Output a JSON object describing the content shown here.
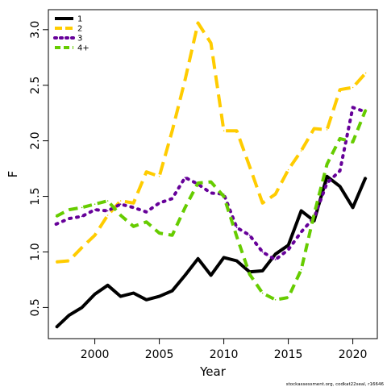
{
  "chart_data": {
    "type": "line",
    "xlabel": "Year",
    "ylabel": "F",
    "xlim": [
      1996.4,
      2021.9
    ],
    "ylim": [
      0.22,
      3.18
    ],
    "x_ticks": [
      2000,
      2005,
      2010,
      2015,
      2020
    ],
    "x_tick_labels": [
      "2000",
      "2005",
      "2010",
      "2015",
      "2020"
    ],
    "y_ticks": [
      0.5,
      1.0,
      1.5,
      2.0,
      2.5,
      3.0
    ],
    "y_tick_labels": [
      "0.5",
      "1.0",
      "1.5",
      "2.0",
      "2.5",
      "3.0"
    ],
    "legend_position": "top-left",
    "grid": false,
    "x": [
      1997,
      1998,
      1999,
      2000,
      2001,
      2002,
      2003,
      2004,
      2005,
      2006,
      2007,
      2008,
      2009,
      2010,
      2011,
      2012,
      2013,
      2014,
      2015,
      2016,
      2017,
      2018,
      2019,
      2020,
      2021
    ],
    "series": [
      {
        "name": "1",
        "color": "#000000",
        "dash": "solid",
        "values": [
          0.32,
          0.43,
          0.5,
          0.62,
          0.7,
          0.6,
          0.63,
          0.57,
          0.6,
          0.65,
          0.79,
          0.94,
          0.79,
          0.95,
          0.92,
          0.82,
          0.83,
          0.98,
          1.06,
          1.37,
          1.28,
          1.68,
          1.59,
          1.4,
          1.67
        ]
      },
      {
        "name": "2",
        "color": "#ffcc00",
        "dash": "long-dash",
        "values": [
          0.91,
          0.92,
          1.04,
          1.15,
          1.33,
          1.46,
          1.44,
          1.72,
          1.68,
          2.09,
          2.55,
          3.06,
          2.88,
          2.09,
          2.09,
          1.77,
          1.44,
          1.52,
          1.74,
          1.91,
          2.11,
          2.1,
          2.46,
          2.48,
          2.61
        ]
      },
      {
        "name": "3",
        "color": "#660099",
        "dash": "dot",
        "values": [
          1.25,
          1.3,
          1.32,
          1.38,
          1.37,
          1.43,
          1.4,
          1.36,
          1.44,
          1.48,
          1.67,
          1.61,
          1.53,
          1.52,
          1.22,
          1.15,
          1.0,
          0.93,
          1.02,
          1.18,
          1.31,
          1.62,
          1.73,
          2.3,
          2.26
        ]
      },
      {
        "name": "4+",
        "color": "#66cc00",
        "dash": "dash",
        "values": [
          1.32,
          1.38,
          1.4,
          1.43,
          1.46,
          1.33,
          1.23,
          1.27,
          1.17,
          1.15,
          1.4,
          1.62,
          1.63,
          1.5,
          1.14,
          0.8,
          0.63,
          0.57,
          0.59,
          0.84,
          1.34,
          1.79,
          2.02,
          1.99,
          2.28
        ]
      }
    ],
    "credit": "stockassessment.org, codkat22seal, r16646"
  }
}
